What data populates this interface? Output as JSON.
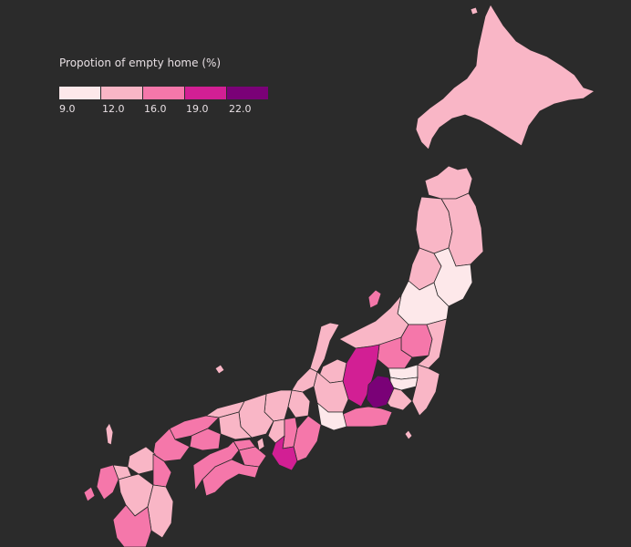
{
  "legend": {
    "title": "Propotion of empty home (%)",
    "ticks": [
      "9.0",
      "12.0",
      "16.0",
      "19.0",
      "22.0"
    ],
    "colors": [
      "#fde8ea",
      "#f9b6c6",
      "#f577aa",
      "#d21f94",
      "#7a0177"
    ]
  },
  "map": {
    "region": "Japan prefectures",
    "fill_colors": {
      "lightest": "#fde8ea",
      "light": "#f9b6c6",
      "medium": "#f577aa",
      "dark": "#d21f94",
      "darkest": "#7a0177"
    },
    "background": "#2b2b2b"
  }
}
